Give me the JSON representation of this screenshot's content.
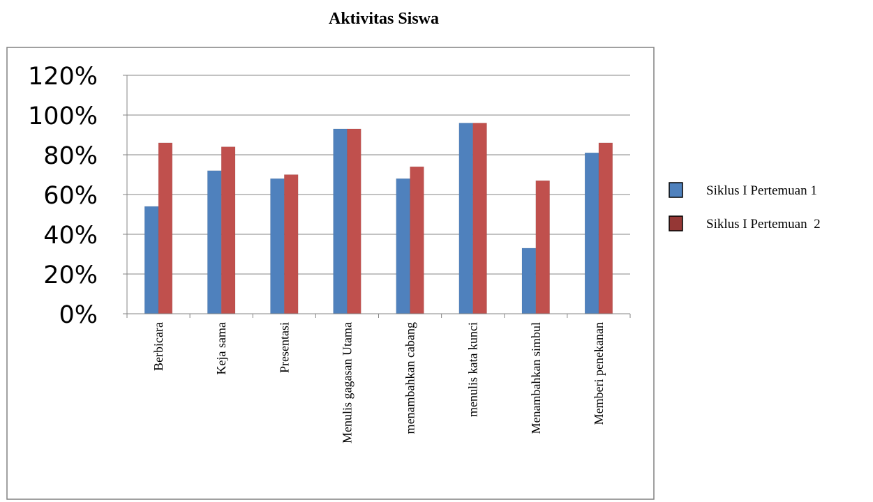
{
  "chart_data": {
    "type": "bar",
    "title": "Aktivitas Siswa",
    "categories": [
      "Berbicara",
      "Keja sama",
      "Presentasi",
      "Menulis gagasan Utama",
      "menambahkan cabang",
      "menulis kata kunci",
      "Menambahkan simbul",
      "Memberi penekanan"
    ],
    "series": [
      {
        "name": "Siklus I Pertemuan 1",
        "values": [
          54,
          72,
          68,
          93,
          68,
          96,
          33,
          81
        ],
        "color": "#4f81bd"
      },
      {
        "name": "Siklus I Pertemuan  2",
        "values": [
          86,
          84,
          70,
          93,
          74,
          96,
          67,
          86
        ],
        "color": "#c0504d"
      }
    ],
    "legend_swatch_colors": [
      "#4f81bd",
      "#953735"
    ],
    "ylim": [
      0,
      120
    ],
    "yticks": [
      "0%",
      "20%",
      "40%",
      "60%",
      "80%",
      "100%",
      "120%"
    ],
    "grid": true,
    "legend_position": "right"
  }
}
